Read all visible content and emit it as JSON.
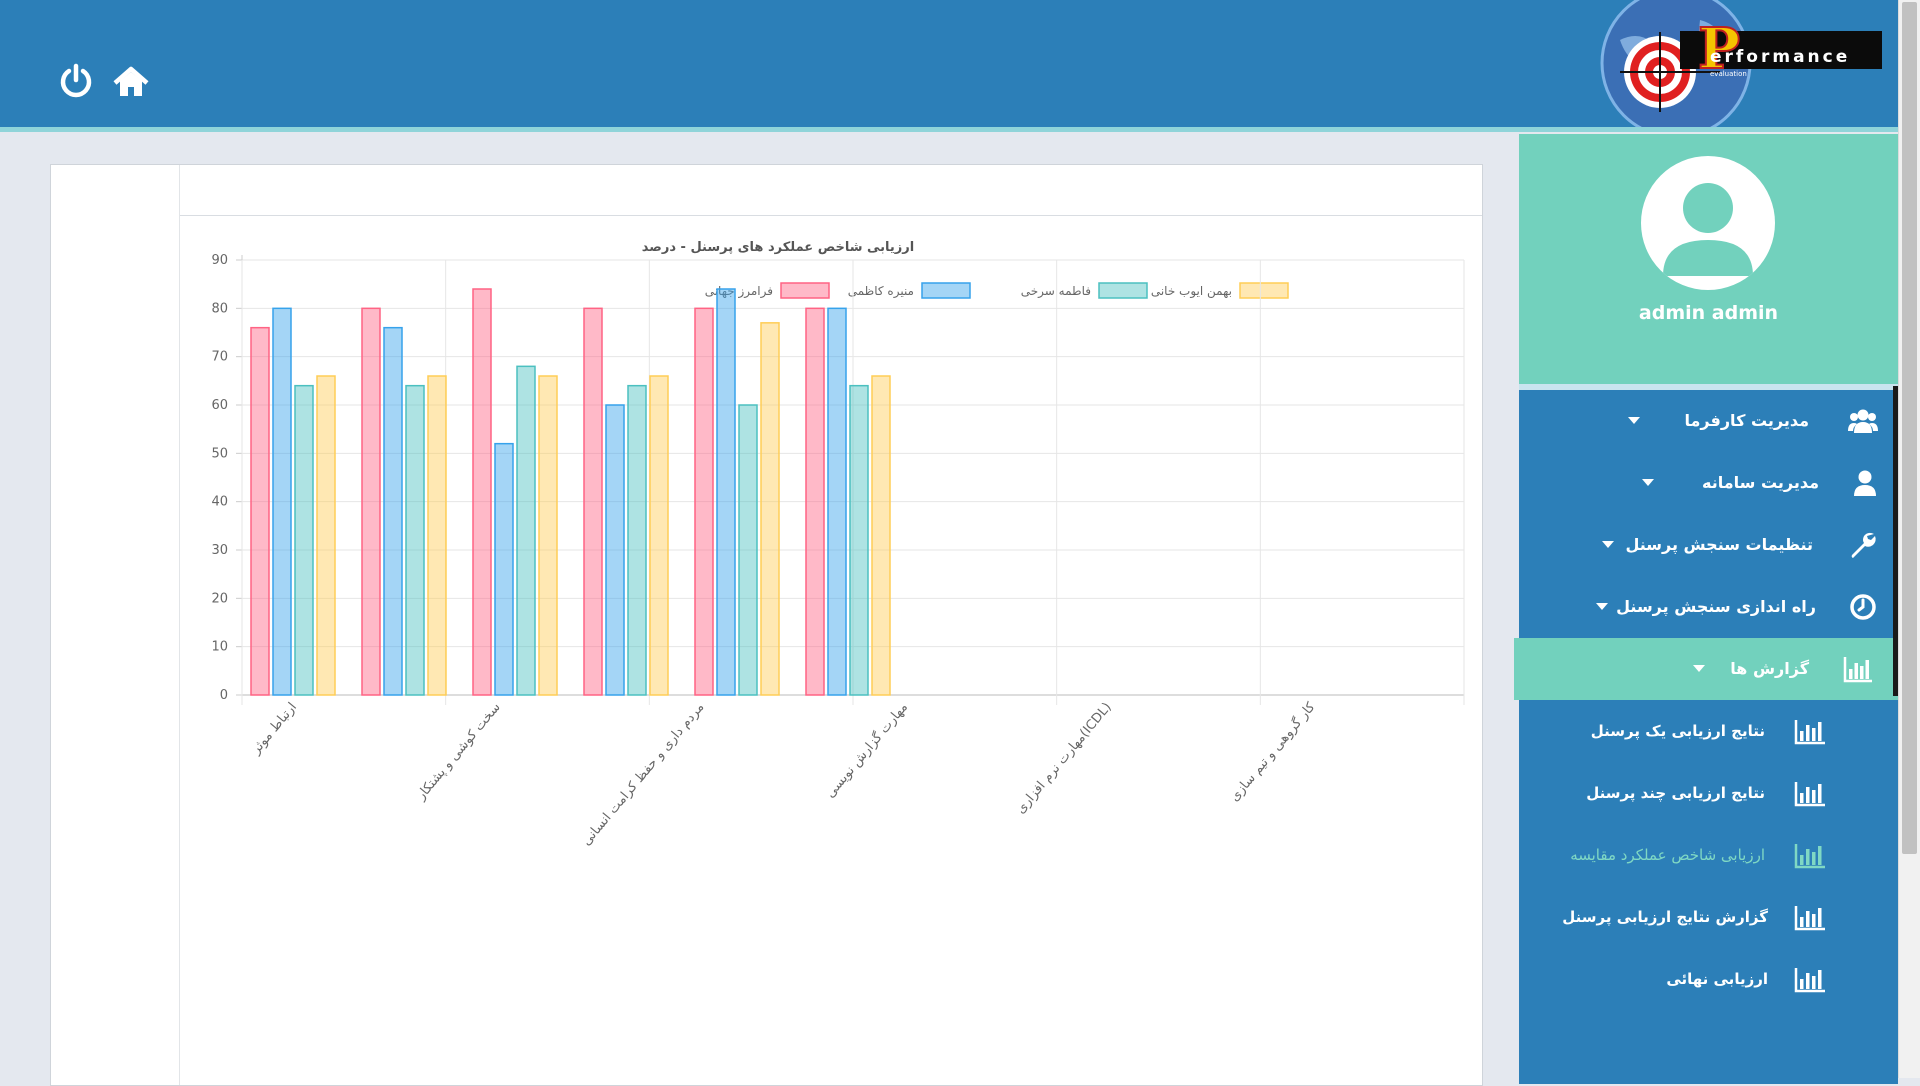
{
  "header": {
    "logo_text": "erformance",
    "logo_letter": "P",
    "logo_subtext": "evaluation",
    "power_icon": "power-icon",
    "home_icon": "home-icon"
  },
  "sidebar": {
    "username": "admin admin",
    "avatar_icon": "user-avatar-icon",
    "menu": [
      {
        "label": "مدیریت کارفرما",
        "icon": "users-icon",
        "has_caret": true
      },
      {
        "label": "مدیریت سامانه",
        "icon": "user-icon",
        "has_caret": true
      },
      {
        "label": "تنظیمات سنجش پرسنل",
        "icon": "wrench-icon",
        "has_caret": true
      },
      {
        "label": "راه اندازی سنجش پرسنل",
        "icon": "clock-icon",
        "has_caret": true
      },
      {
        "label": "گزارش ها",
        "icon": "bar-chart-icon",
        "has_caret": true,
        "active": true
      }
    ],
    "submenu": [
      {
        "label": "نتایج ارزیابی یک پرسنل",
        "icon": "bar-chart-icon"
      },
      {
        "label": "نتایج ارزیابی چند پرسنل",
        "icon": "bar-chart-icon"
      },
      {
        "label": "ارزیابی شاخص عملکرد مقایسه",
        "icon": "bar-chart-icon",
        "current": true
      },
      {
        "label": "گزارش نتایج ارزیابی پرسنل",
        "icon": "bar-chart-icon"
      },
      {
        "label": "ارزیابی نهائی",
        "icon": "bar-chart-icon"
      }
    ]
  },
  "colors": {
    "header_bg": "#2c7fb8",
    "sidebar_bg": "#2c7fb8",
    "accent_teal": "#72d1bd",
    "page_bg": "#e4e8ef"
  },
  "chart_data": {
    "type": "bar",
    "title": "ارزیابی شاخص عملکرد های پرسنل - درصد",
    "xlabel": "",
    "ylabel": "",
    "ylim": [
      0,
      90
    ],
    "yticks": [
      0,
      10,
      20,
      30,
      40,
      50,
      60,
      70,
      80,
      90
    ],
    "grid": true,
    "legend_position": "top",
    "categories": [
      "ارتباط موثر",
      "سخت کوشی و پشتکار",
      "مردم داری و حفظ کرامت انسانی",
      "مهارت گزارش نویسی",
      "مهارت نرم افزاری(ICDL)",
      "کار گروهی و تیم سازی"
    ],
    "series": [
      {
        "name": "فرامرز جهانی",
        "color": "#ff6384",
        "values": [
          76,
          80,
          84,
          80,
          80,
          80
        ]
      },
      {
        "name": "منیره کاظمی",
        "color": "#36a2eb",
        "values": [
          80,
          76,
          52,
          60,
          84,
          80
        ]
      },
      {
        "name": "فاطمه سرخی",
        "color": "#4bc0c0",
        "values": [
          64,
          64,
          68,
          64,
          60,
          64
        ]
      },
      {
        "name": "بهمن ایوب خانی",
        "color": "#ffcd56",
        "values": [
          66,
          66,
          66,
          66,
          77,
          66
        ]
      }
    ]
  }
}
